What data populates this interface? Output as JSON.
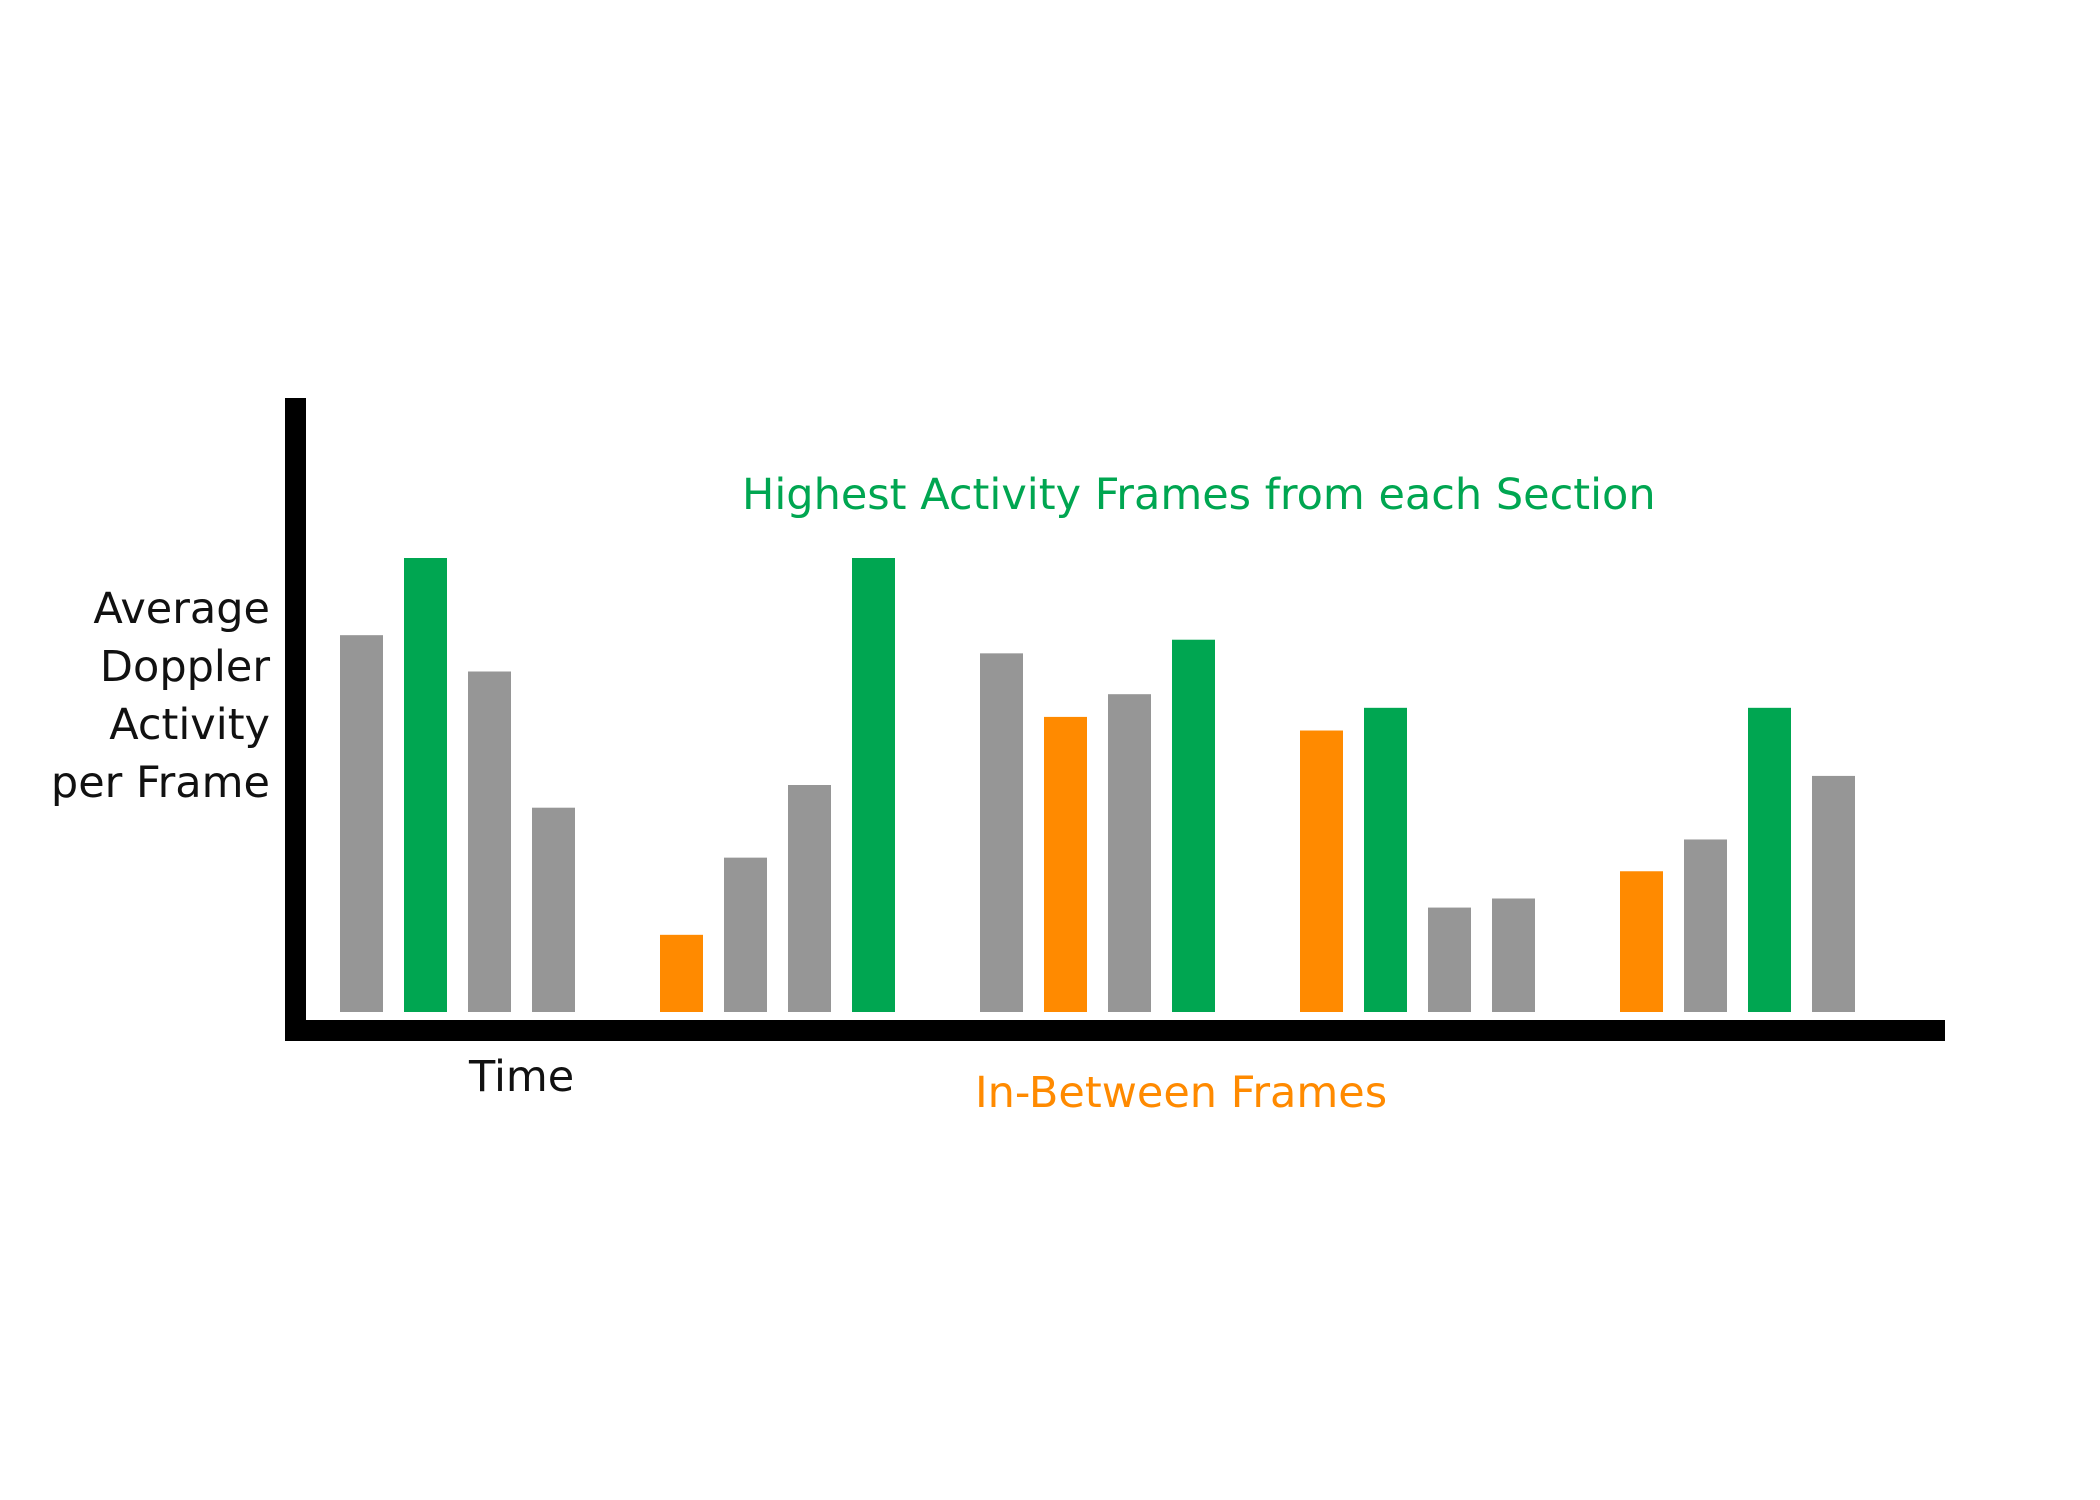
{
  "chart_data": {
    "type": "bar",
    "title": "",
    "xlabel": "Time",
    "ylabel_lines": [
      "Average",
      "Doppler",
      "Activity",
      "per Frame"
    ],
    "ylim": [
      0,
      100
    ],
    "sections": [
      {
        "values": [
          83,
          100,
          75,
          45
        ],
        "kinds": [
          "other",
          "highest",
          "other",
          "other"
        ]
      },
      {
        "values": [
          17,
          34,
          50,
          100
        ],
        "kinds": [
          "in-between",
          "other",
          "other",
          "highest"
        ]
      },
      {
        "values": [
          79,
          65,
          70,
          82
        ],
        "kinds": [
          "other",
          "in-between",
          "other",
          "highest"
        ]
      },
      {
        "values": [
          62,
          67,
          23,
          25
        ],
        "kinds": [
          "in-between",
          "highest",
          "other",
          "other"
        ]
      },
      {
        "values": [
          31,
          38,
          67,
          52
        ],
        "kinds": [
          "in-between",
          "other",
          "highest",
          "other"
        ]
      }
    ],
    "annotations": {
      "highest": "Highest Activity Frames from each Section",
      "in_between": "In-Between Frames"
    },
    "colors": {
      "other": "#969696",
      "highest": "#00a651",
      "in-between": "#ff8a00",
      "axis": "#000000"
    },
    "grid": false,
    "legend": "none"
  }
}
